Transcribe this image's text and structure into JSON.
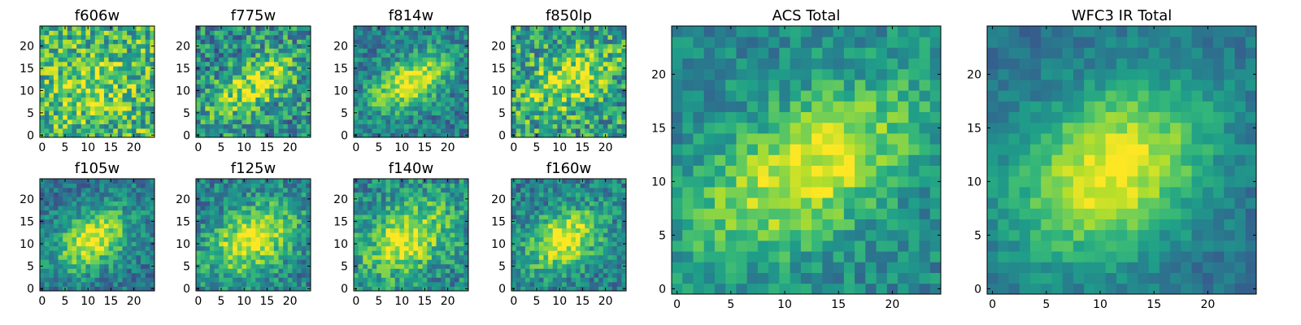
{
  "figure": {
    "background": "#ffffff"
  },
  "colormap": {
    "name": "viridis",
    "stops": [
      "#440154",
      "#482878",
      "#3e4a89",
      "#31688e",
      "#26828e",
      "#1f9e89",
      "#35b779",
      "#6ece58",
      "#b5de2b",
      "#fde725"
    ]
  },
  "chart_data": [
    {
      "type": "heatmap",
      "title": "f606w",
      "grid_size": 25,
      "xlim": [
        0,
        24
      ],
      "ylim": [
        0,
        24
      ],
      "xticks": [
        0,
        5,
        10,
        15,
        20
      ],
      "yticks": [
        0,
        5,
        10,
        15,
        20
      ],
      "base_level": 0.66,
      "noise": 0.3,
      "blobs": [
        {
          "x": 11,
          "y": 11,
          "sx": 5,
          "sy": 4,
          "rot": 0.3,
          "amp": 0.22
        }
      ]
    },
    {
      "type": "heatmap",
      "title": "f775w",
      "grid_size": 25,
      "xlim": [
        0,
        24
      ],
      "ylim": [
        0,
        24
      ],
      "xticks": [
        0,
        5,
        10,
        15,
        20
      ],
      "yticks": [
        0,
        5,
        10,
        15,
        20
      ],
      "base_level": 0.47,
      "noise": 0.28,
      "blobs": [
        {
          "x": 12,
          "y": 11,
          "sx": 8,
          "sy": 3.5,
          "rot": 0.55,
          "amp": 0.42
        }
      ]
    },
    {
      "type": "heatmap",
      "title": "f814w",
      "grid_size": 25,
      "xlim": [
        0,
        24
      ],
      "ylim": [
        0,
        24
      ],
      "xticks": [
        0,
        5,
        10,
        15,
        20
      ],
      "yticks": [
        0,
        5,
        10,
        15,
        20
      ],
      "base_level": 0.42,
      "noise": 0.2,
      "blobs": [
        {
          "x": 12,
          "y": 12,
          "sx": 7,
          "sy": 3.5,
          "rot": 0.55,
          "amp": 0.55
        }
      ]
    },
    {
      "type": "heatmap",
      "title": "f850lp",
      "grid_size": 25,
      "xlim": [
        0,
        24
      ],
      "ylim": [
        0,
        24
      ],
      "xticks": [
        0,
        5,
        10,
        15,
        20
      ],
      "yticks": [
        0,
        5,
        10,
        15,
        20
      ],
      "base_level": 0.56,
      "noise": 0.3,
      "blobs": [
        {
          "x": 12,
          "y": 12,
          "sx": 7,
          "sy": 4,
          "rot": 0.5,
          "amp": 0.35
        }
      ]
    },
    {
      "type": "heatmap",
      "title": "f105w",
      "grid_size": 25,
      "xlim": [
        0,
        24
      ],
      "ylim": [
        0,
        24
      ],
      "xticks": [
        0,
        5,
        10,
        15,
        20
      ],
      "yticks": [
        0,
        5,
        10,
        15,
        20
      ],
      "base_level": 0.4,
      "noise": 0.18,
      "blobs": [
        {
          "x": 11,
          "y": 11,
          "sx": 6,
          "sy": 4,
          "rot": 0.6,
          "amp": 0.58
        }
      ]
    },
    {
      "type": "heatmap",
      "title": "f125w",
      "grid_size": 25,
      "xlim": [
        0,
        24
      ],
      "ylim": [
        0,
        24
      ],
      "xticks": [
        0,
        5,
        10,
        15,
        20
      ],
      "yticks": [
        0,
        5,
        10,
        15,
        20
      ],
      "base_level": 0.44,
      "noise": 0.2,
      "blobs": [
        {
          "x": 12,
          "y": 11,
          "sx": 7,
          "sy": 4.5,
          "rot": 0.6,
          "amp": 0.55
        }
      ]
    },
    {
      "type": "heatmap",
      "title": "f140w",
      "grid_size": 25,
      "xlim": [
        0,
        24
      ],
      "ylim": [
        0,
        24
      ],
      "xticks": [
        0,
        5,
        10,
        15,
        20
      ],
      "yticks": [
        0,
        5,
        10,
        15,
        20
      ],
      "base_level": 0.48,
      "noise": 0.22,
      "blobs": [
        {
          "x": 11,
          "y": 11,
          "sx": 7,
          "sy": 4.5,
          "rot": 0.6,
          "amp": 0.5
        }
      ]
    },
    {
      "type": "heatmap",
      "title": "f160w",
      "grid_size": 25,
      "xlim": [
        0,
        24
      ],
      "ylim": [
        0,
        24
      ],
      "xticks": [
        0,
        5,
        10,
        15,
        20
      ],
      "yticks": [
        0,
        5,
        10,
        15,
        20
      ],
      "base_level": 0.43,
      "noise": 0.2,
      "blobs": [
        {
          "x": 11,
          "y": 11,
          "sx": 6,
          "sy": 4,
          "rot": 0.6,
          "amp": 0.58
        }
      ]
    },
    {
      "type": "heatmap",
      "title": "ACS Total",
      "grid_size": 25,
      "xlim": [
        0,
        24
      ],
      "ylim": [
        0,
        24
      ],
      "xticks": [
        0,
        5,
        10,
        15,
        20
      ],
      "yticks": [
        0,
        5,
        10,
        15,
        20
      ],
      "base_level": 0.47,
      "noise": 0.15,
      "blobs": [
        {
          "x": 12,
          "y": 11,
          "sx": 8,
          "sy": 4,
          "rot": 0.55,
          "amp": 0.5
        }
      ]
    },
    {
      "type": "heatmap",
      "title": "WFC3 IR Total",
      "grid_size": 25,
      "xlim": [
        0,
        24
      ],
      "ylim": [
        0,
        24
      ],
      "xticks": [
        0,
        5,
        10,
        15,
        20
      ],
      "yticks": [
        0,
        5,
        10,
        15,
        20
      ],
      "base_level": 0.37,
      "noise": 0.1,
      "blobs": [
        {
          "x": 11,
          "y": 11,
          "sx": 7,
          "sy": 5,
          "rot": 0.6,
          "amp": 0.62
        }
      ]
    }
  ]
}
